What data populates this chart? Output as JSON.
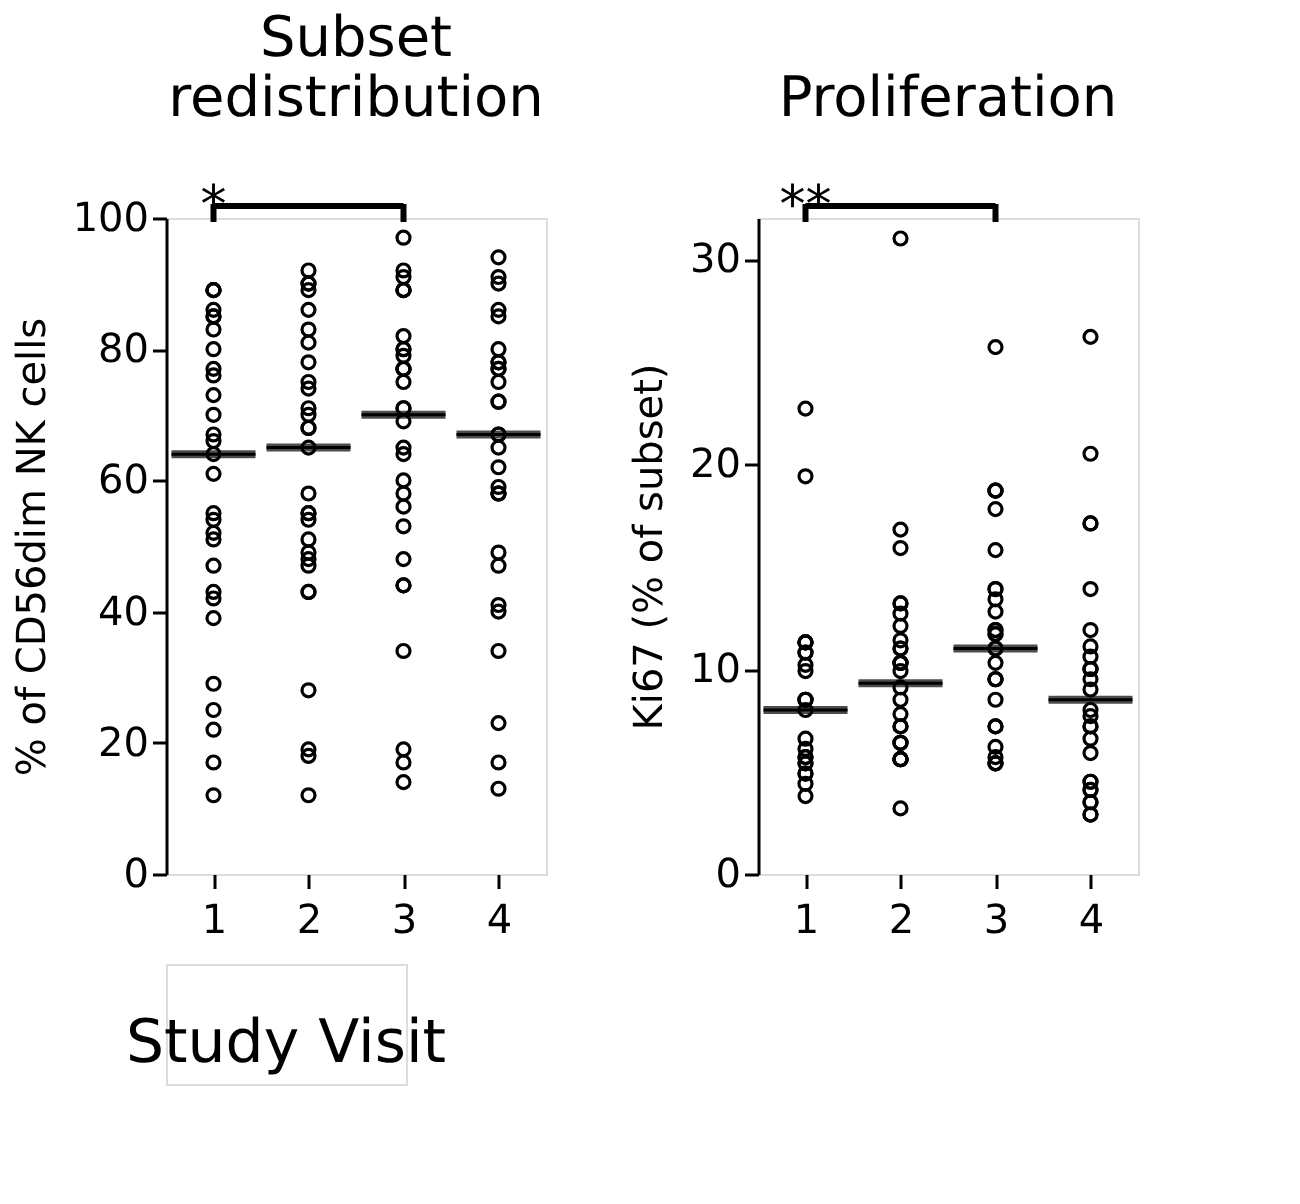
{
  "chart_data": [
    {
      "type": "scatter",
      "title": "Subset redistribution",
      "ylabel": "% of CD56dim NK cells",
      "xlabel": "Study Visit",
      "categories": [
        "1",
        "2",
        "3",
        "4"
      ],
      "ylim": [
        0,
        100
      ],
      "yticks": [
        0,
        20,
        40,
        60,
        80,
        100
      ],
      "grid": false,
      "legend": false,
      "marker": "circle",
      "annotations": [
        "*"
      ],
      "series": [
        {
          "color": "#000000",
          "x": [
            "1",
            "1",
            "1",
            "1",
            "1",
            "1",
            "1",
            "1",
            "1",
            "1",
            "1",
            "1",
            "1",
            "1",
            "1",
            "1",
            "1",
            "1",
            "1",
            "1",
            "1",
            "1",
            "1",
            "1",
            "1",
            "1",
            "1",
            "1",
            "1",
            "2",
            "2",
            "2",
            "2",
            "2",
            "2",
            "2",
            "2",
            "2",
            "2",
            "2",
            "2",
            "2",
            "2",
            "2",
            "2",
            "2",
            "2",
            "2",
            "2",
            "2",
            "2",
            "2",
            "2",
            "2",
            "2",
            "2",
            "2",
            "2",
            "3",
            "3",
            "3",
            "3",
            "3",
            "3",
            "3",
            "3",
            "3",
            "3",
            "3",
            "3",
            "3",
            "3",
            "3",
            "3",
            "3",
            "3",
            "3",
            "3",
            "3",
            "3",
            "3",
            "3",
            "3",
            "3",
            "3",
            "3",
            "3",
            "3",
            "4",
            "4",
            "4",
            "4",
            "4",
            "4",
            "4",
            "4",
            "4",
            "4",
            "4",
            "4",
            "4",
            "4",
            "4",
            "4",
            "4",
            "4",
            "4",
            "4",
            "4",
            "4",
            "4",
            "4",
            "4",
            "4",
            "4",
            "4",
            "4"
          ],
          "values": [
            89,
            89,
            89,
            86,
            85,
            85,
            83,
            80,
            77,
            76,
            73,
            70,
            67,
            66,
            64,
            61,
            55,
            54,
            52,
            51,
            47,
            43,
            42,
            39,
            29,
            25,
            22,
            17,
            12,
            92,
            90,
            90,
            89,
            86,
            83,
            81,
            78,
            75,
            74,
            71,
            70,
            68,
            68,
            65,
            58,
            55,
            55,
            54,
            51,
            49,
            48,
            47,
            43,
            43,
            28,
            19,
            18,
            12,
            97,
            92,
            91,
            89,
            89,
            89,
            82,
            80,
            80,
            79,
            77,
            77,
            77,
            75,
            71,
            71,
            69,
            65,
            64,
            60,
            58,
            56,
            53,
            48,
            44,
            44,
            34,
            19,
            17,
            14,
            94,
            91,
            90,
            86,
            85,
            80,
            78,
            78,
            77,
            77,
            75,
            72,
            72,
            67,
            67,
            65,
            62,
            59,
            58,
            58,
            58,
            49,
            47,
            41,
            40,
            34,
            23,
            17,
            13
          ]
        },
        {
          "type": "box",
          "color": "#000000",
          "boxes": [
            {
              "low": 64,
              "q1": 64,
              "median": 64,
              "q3": 64,
              "high": 64
            },
            {
              "low": 65,
              "q1": 65,
              "median": 65,
              "q3": 65,
              "high": 65
            },
            {
              "low": 70,
              "q1": 70,
              "median": 70,
              "q3": 70,
              "high": 70
            },
            {
              "low": 67,
              "q1": 67,
              "median": 67,
              "q3": 67,
              "high": 67
            }
          ]
        }
      ]
    },
    {
      "type": "scatter",
      "title": "Proliferation",
      "ylabel": "Ki67 (% of subset)",
      "categories": [
        "1",
        "2",
        "3",
        "4"
      ],
      "ylim": [
        0,
        32
      ],
      "yticks": [
        0,
        10,
        20,
        30
      ],
      "grid": false,
      "legend": false,
      "marker": "circle",
      "annotations": [
        "**"
      ],
      "series": [
        {
          "color": "#000000",
          "x": [
            "1",
            "1",
            "1",
            "1",
            "1",
            "1",
            "1",
            "1",
            "1",
            "1",
            "1",
            "1",
            "1",
            "1",
            "1",
            "1",
            "1",
            "1",
            "1",
            "1",
            "1",
            "1",
            "1",
            "1",
            "2",
            "2",
            "2",
            "2",
            "2",
            "2",
            "2",
            "2",
            "2",
            "2",
            "2",
            "2",
            "2",
            "2",
            "2",
            "2",
            "2",
            "2",
            "2",
            "2",
            "2",
            "2",
            "2",
            "2",
            "2",
            "2",
            "2",
            "2",
            "3",
            "3",
            "3",
            "3",
            "3",
            "3",
            "3",
            "3",
            "3",
            "3",
            "3",
            "3",
            "3",
            "3",
            "3",
            "3",
            "3",
            "3",
            "3",
            "3",
            "3",
            "3",
            "3",
            "3",
            "3",
            "3",
            "3",
            "3",
            "4",
            "4",
            "4",
            "4",
            "4",
            "4",
            "4",
            "4",
            "4",
            "4",
            "4",
            "4",
            "4",
            "4",
            "4",
            "4",
            "4",
            "4",
            "4",
            "4",
            "4",
            "4",
            "4",
            "4",
            "4",
            "4",
            "4"
          ],
          "values": [
            22.7,
            19.4,
            11.3,
            11.3,
            11.3,
            11.3,
            10.8,
            10.8,
            10.2,
            9.9,
            8.5,
            8.5,
            8.5,
            8.0,
            6.6,
            6.1,
            5.7,
            5.7,
            5.4,
            5.4,
            4.9,
            4.9,
            4.4,
            3.8,
            31.0,
            16.8,
            15.9,
            13.2,
            13.2,
            12.7,
            12.1,
            11.4,
            11.0,
            11.0,
            10.3,
            10.3,
            10.3,
            10.3,
            9.9,
            9.1,
            8.5,
            7.8,
            7.2,
            7.2,
            6.4,
            6.4,
            6.4,
            5.6,
            5.6,
            5.6,
            5.6,
            3.2,
            25.7,
            18.7,
            18.7,
            18.7,
            17.8,
            15.8,
            13.9,
            13.9,
            13.4,
            12.8,
            11.9,
            11.9,
            11.7,
            11.7,
            11.0,
            11.0,
            10.3,
            9.5,
            9.5,
            9.5,
            8.5,
            7.2,
            7.2,
            6.2,
            5.7,
            5.4,
            5.4,
            5.4,
            26.2,
            20.5,
            17.1,
            17.1,
            13.9,
            11.9,
            11.1,
            10.6,
            10.0,
            10.0,
            10.0,
            9.5,
            9.0,
            8.0,
            7.7,
            7.2,
            7.2,
            6.6,
            5.9,
            4.5,
            4.5,
            4.1,
            4.1,
            3.5,
            3.5,
            2.9,
            2.9
          ]
        },
        {
          "type": "box",
          "color": "#000000",
          "boxes": [
            {
              "low": 8.0,
              "q1": 8.0,
              "median": 8.0,
              "q3": 8.0,
              "high": 8.0
            },
            {
              "low": 9.3,
              "q1": 9.3,
              "median": 9.3,
              "q3": 9.3,
              "high": 9.3
            },
            {
              "low": 11.0,
              "q1": 11.0,
              "median": 11.0,
              "q3": 11.0,
              "high": 11.0
            },
            {
              "low": 8.5,
              "q1": 8.5,
              "median": 8.5,
              "q3": 8.5,
              "high": 8.5
            }
          ]
        }
      ]
    }
  ]
}
